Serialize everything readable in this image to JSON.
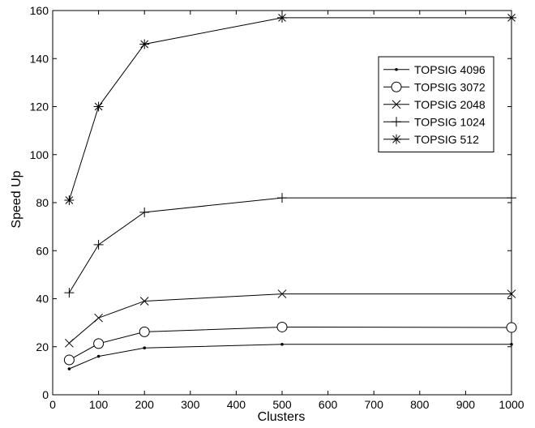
{
  "chart_data": {
    "type": "line",
    "title": "",
    "xlabel": "Clusters",
    "ylabel": "Speed Up",
    "xlim": [
      0,
      1000
    ],
    "ylim": [
      0,
      160
    ],
    "xticks": [
      0,
      100,
      200,
      300,
      400,
      500,
      600,
      700,
      800,
      900,
      1000
    ],
    "yticks": [
      0,
      20,
      40,
      60,
      80,
      100,
      120,
      140,
      160
    ],
    "grid": false,
    "legend_position": "top-right",
    "line_color": "#000000",
    "series": [
      {
        "name": "TOPSIG 4096",
        "marker": "dot",
        "x": [
          36,
          100,
          200,
          500,
          1000
        ],
        "y": [
          10.8,
          16,
          19.5,
          21,
          21
        ]
      },
      {
        "name": "TOPSIG 3072",
        "marker": "circle",
        "x": [
          36,
          100,
          200,
          500,
          1000
        ],
        "y": [
          14.5,
          21.3,
          26.2,
          28.2,
          28
        ]
      },
      {
        "name": "TOPSIG 2048",
        "marker": "x",
        "x": [
          36,
          100,
          200,
          500,
          1000
        ],
        "y": [
          21.5,
          32,
          39,
          42,
          42
        ]
      },
      {
        "name": "TOPSIG 1024",
        "marker": "plus",
        "x": [
          36,
          100,
          200,
          500,
          1000
        ],
        "y": [
          42.5,
          62.5,
          76,
          82,
          82
        ]
      },
      {
        "name": "TOPSIG 512",
        "marker": "star",
        "x": [
          36,
          100,
          200,
          500,
          1000
        ],
        "y": [
          81,
          120,
          146,
          157,
          157
        ]
      }
    ]
  }
}
